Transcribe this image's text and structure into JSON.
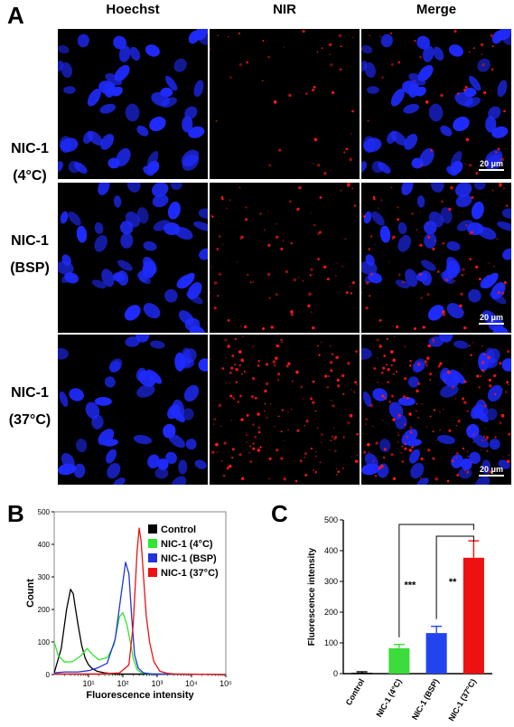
{
  "panels": {
    "a": "A",
    "b": "B",
    "c": "C"
  },
  "column_headers": [
    "Hoechst",
    "NIR",
    "Merge"
  ],
  "rows": [
    {
      "line1": "NIC-1",
      "line2": "(4°C)"
    },
    {
      "line1": "NIC-1",
      "line2": "(BSP)"
    },
    {
      "line1": "NIC-1",
      "line2": "(37°C)"
    }
  ],
  "scale_bar": "20 μm",
  "colors": {
    "hoechst": "#1f2bff",
    "nir": "#ff1a1a",
    "control": "#000000",
    "nic_4c": "#2ee62e",
    "nic_bsp": "#2233dd",
    "nic_37c": "#ee1111"
  },
  "chart_data": [
    {
      "type": "line",
      "panel": "B",
      "xlabel": "Fluorescence intensity",
      "ylabel": "Count",
      "xscale": "log",
      "xlim": [
        1,
        100000
      ],
      "ylim": [
        0,
        500
      ],
      "x_ticks": [
        "10¹",
        "10²",
        "10³",
        "10⁴",
        "10⁵"
      ],
      "y_ticks": [
        0,
        100,
        200,
        300,
        400,
        500
      ],
      "legend": {
        "placement": "top-right"
      },
      "series": [
        {
          "name": "Control",
          "color": "#000000",
          "x": [
            1,
            1.6,
            2.3,
            3.0,
            3.6,
            4.2,
            5.0,
            6.3,
            8.0,
            10,
            13,
            18,
            30,
            60,
            100000
          ],
          "y": [
            5,
            80,
            200,
            262,
            248,
            200,
            150,
            90,
            50,
            30,
            18,
            10,
            5,
            2,
            0
          ]
        },
        {
          "name": "NIC-1 (4°C)",
          "color": "#2ee62e",
          "x": [
            1,
            1.3,
            2,
            3.5,
            6,
            9,
            13,
            20,
            35,
            55,
            80,
            100,
            130,
            165,
            200,
            260,
            350,
            600,
            100000
          ],
          "y": [
            100,
            60,
            38,
            40,
            58,
            80,
            62,
            45,
            52,
            90,
            178,
            190,
            155,
            100,
            50,
            15,
            5,
            2,
            0
          ]
        },
        {
          "name": "NIC-1 (BSP)",
          "color": "#2233dd",
          "x": [
            1,
            2,
            5,
            10,
            18,
            35,
            60,
            90,
            120,
            150,
            180,
            220,
            280,
            400,
            700,
            100000
          ],
          "y": [
            5,
            8,
            8,
            12,
            20,
            35,
            110,
            250,
            345,
            310,
            180,
            60,
            20,
            5,
            2,
            0
          ]
        },
        {
          "name": "NIC-1 (37°C)",
          "color": "#ee1111",
          "x": [
            1,
            20,
            80,
            150,
            200,
            260,
            300,
            340,
            400,
            480,
            600,
            800,
            1200,
            2000,
            3000,
            100000
          ],
          "y": [
            2,
            2,
            5,
            30,
            150,
            380,
            450,
            410,
            300,
            180,
            100,
            40,
            10,
            4,
            2,
            0
          ]
        }
      ]
    },
    {
      "type": "bar",
      "panel": "C",
      "ylabel": "Fluorescence intensity",
      "ylim": [
        0,
        500
      ],
      "y_ticks": [
        0,
        100,
        200,
        300,
        400,
        500
      ],
      "categories": [
        "Control",
        "NIC-1 (4°C)",
        "NIC-1 (BSP)",
        "NIC-1 (37°C)"
      ],
      "values": [
        3,
        83,
        132,
        377
      ],
      "errors": [
        3,
        12,
        22,
        55
      ],
      "bar_colors": [
        "#000000",
        "#3cdc3c",
        "#2244ee",
        "#ee1111"
      ],
      "significance": [
        {
          "label": "***",
          "from": "NIC-1 (4°C)",
          "to": "NIC-1 (37°C)"
        },
        {
          "label": "**",
          "from": "NIC-1 (BSP)",
          "to": "NIC-1 (37°C)"
        }
      ]
    }
  ]
}
